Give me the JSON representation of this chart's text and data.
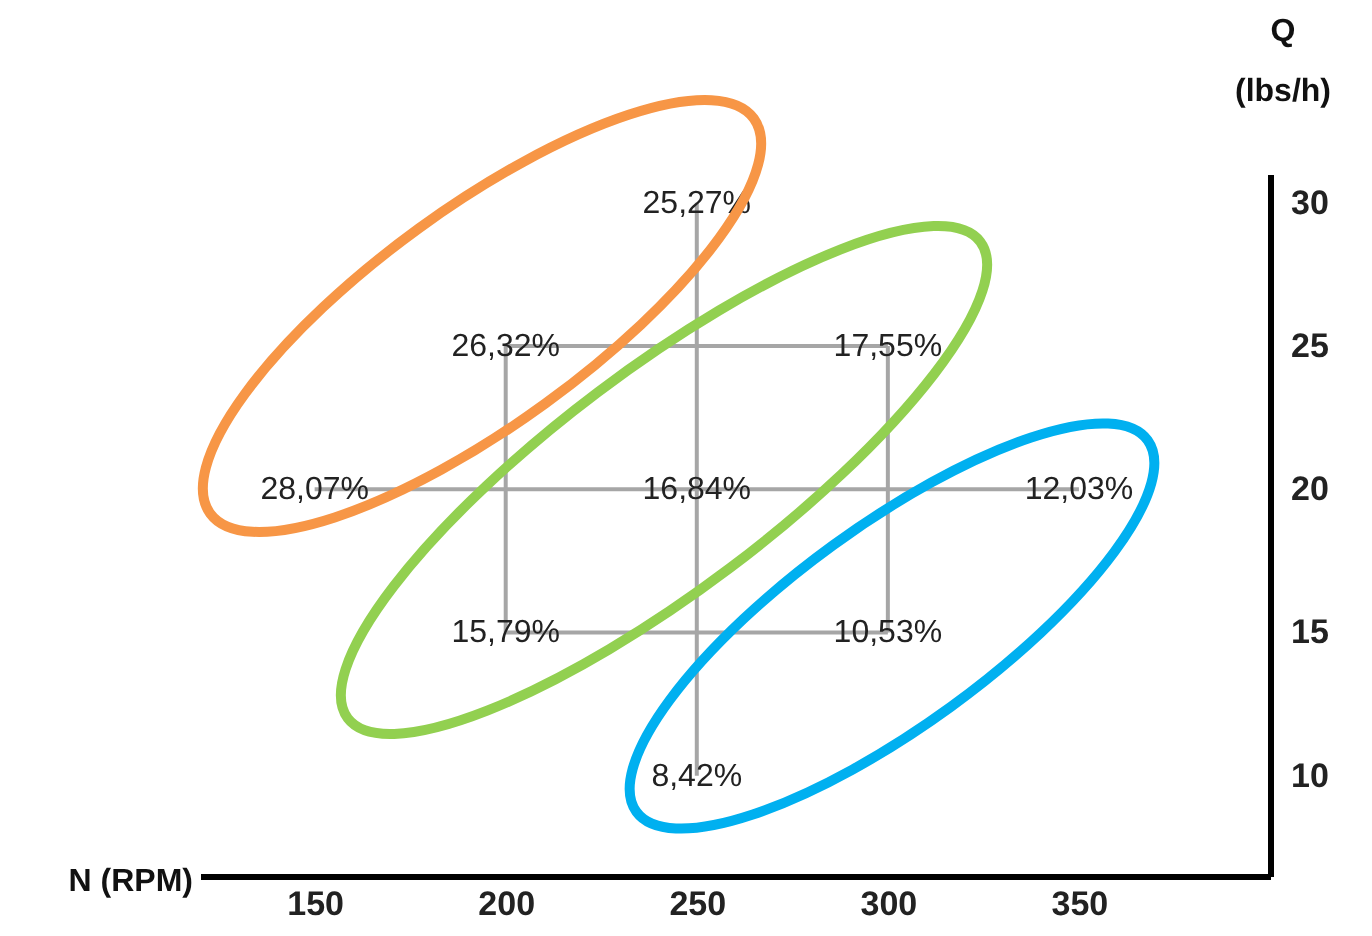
{
  "chart_data": {
    "type": "line",
    "xlabel": "N (RPM)",
    "ylabel": "Q (lbs/h)",
    "xlim": [
      120,
      400
    ],
    "ylim": [
      6.5,
      31
    ],
    "xticks": [
      150,
      200,
      250,
      300,
      350
    ],
    "yticks": [
      10,
      15,
      20,
      25,
      30
    ],
    "grid": false,
    "series": [
      {
        "color": "#a6a6a6",
        "x": [
          150,
          350
        ],
        "values": [
          20,
          20
        ]
      },
      {
        "color": "#a6a6a6",
        "x": [
          250,
          250
        ],
        "values": [
          10,
          30
        ]
      },
      {
        "color": "#a6a6a6",
        "x": [
          200,
          300
        ],
        "values": [
          25,
          25
        ]
      },
      {
        "color": "#a6a6a6",
        "x": [
          200,
          300
        ],
        "values": [
          15,
          15
        ]
      },
      {
        "color": "#a6a6a6",
        "x": [
          200,
          200
        ],
        "values": [
          15,
          25
        ]
      },
      {
        "color": "#a6a6a6",
        "x": [
          300,
          300
        ],
        "values": [
          15,
          25
        ]
      }
    ],
    "annotations": [
      {
        "text": "25,27%",
        "x": 250,
        "y": 30
      },
      {
        "text": "26,32%",
        "x": 200,
        "y": 25
      },
      {
        "text": "17,55%",
        "x": 300,
        "y": 25
      },
      {
        "text": "28,07%",
        "x": 150,
        "y": 20
      },
      {
        "text": "16,84%",
        "x": 250,
        "y": 20
      },
      {
        "text": "12,03%",
        "x": 350,
        "y": 20
      },
      {
        "text": "15,79%",
        "x": 200,
        "y": 15
      },
      {
        "text": "10,53%",
        "x": 300,
        "y": 15
      },
      {
        "text": "8,42%",
        "x": 250,
        "y": 10
      }
    ]
  }
}
